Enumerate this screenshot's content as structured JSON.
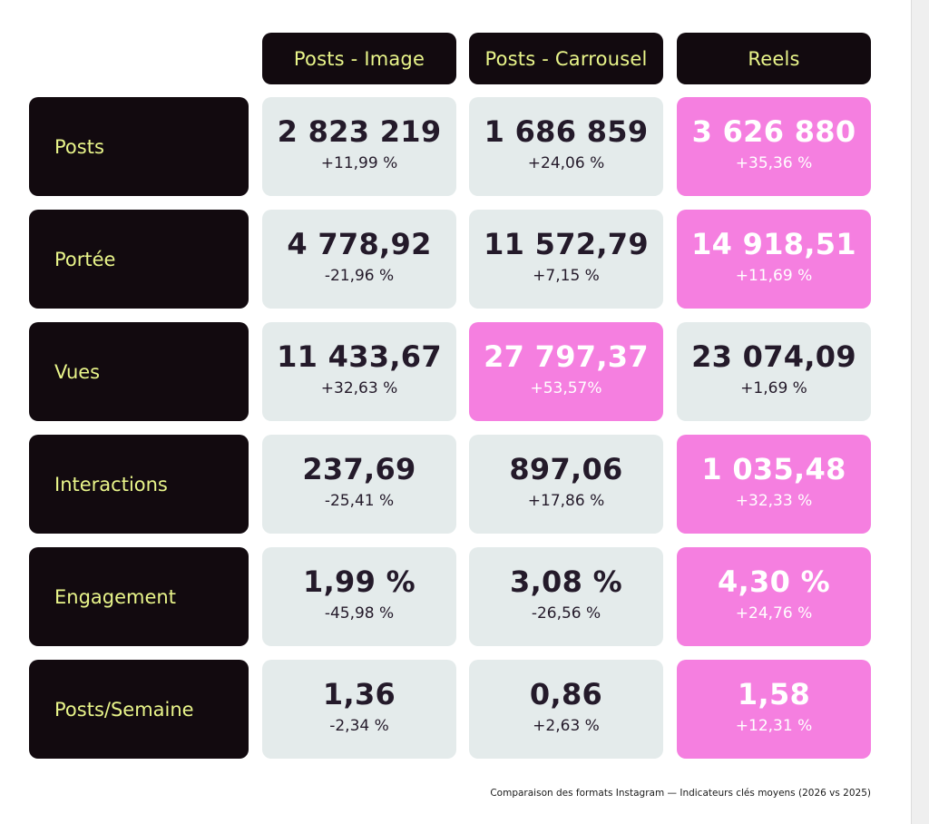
{
  "caption": "Comparaison des formats Instagram — Indicateurs clés moyens (2026 vs 2025)",
  "colors": {
    "dark": "#120a0f",
    "label_text": "#e9f58a",
    "cell": "#e4ebeb",
    "highlight": "#f57fe0"
  },
  "chart_data": {
    "type": "table",
    "columns": [
      "Posts - Image",
      "Posts - Carrousel",
      "Reels"
    ],
    "rows": [
      {
        "label": "Posts",
        "values": [
          "2 823 219",
          "1 686 859",
          "3 626 880"
        ],
        "changes": [
          "+11,99 %",
          "+24,06 %",
          "+35,36 %"
        ],
        "highlight": 2
      },
      {
        "label": "Portée",
        "values": [
          "4 778,92",
          "11 572,79",
          "14 918,51"
        ],
        "changes": [
          "-21,96 %",
          "+7,15 %",
          "+11,69 %"
        ],
        "highlight": 2
      },
      {
        "label": "Vues",
        "values": [
          "11 433,67",
          "27 797,37",
          "23 074,09"
        ],
        "changes": [
          "+32,63 %",
          "+53,57%",
          "+1,69 %"
        ],
        "highlight": 1
      },
      {
        "label": "Interactions",
        "values": [
          "237,69",
          "897,06",
          "1 035,48"
        ],
        "changes": [
          "-25,41 %",
          "+17,86 %",
          "+32,33 %"
        ],
        "highlight": 2
      },
      {
        "label": "Engagement",
        "values": [
          "1,99 %",
          "3,08 %",
          "4,30 %"
        ],
        "changes": [
          "-45,98 %",
          "-26,56 %",
          "+24,76 %"
        ],
        "highlight": 2
      },
      {
        "label": "Posts/Semaine",
        "values": [
          "1,36",
          "0,86",
          "1,58"
        ],
        "changes": [
          "-2,34 %",
          "+2,63 %",
          "+12,31 %"
        ],
        "highlight": 2
      }
    ]
  }
}
